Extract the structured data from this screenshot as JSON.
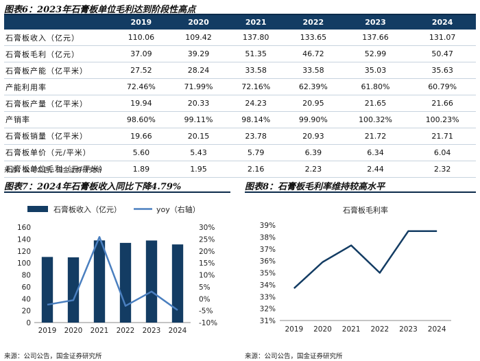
{
  "fig6": {
    "title": "图表6：2023年石膏板单位毛利达到阶段性高点",
    "headers": [
      "",
      "2019",
      "2020",
      "2021",
      "2022",
      "2023",
      "2024"
    ],
    "rows": [
      {
        "label": "石膏板收入（亿元）",
        "values": [
          "110.06",
          "109.42",
          "137.80",
          "133.65",
          "137.66",
          "131.07"
        ]
      },
      {
        "label": "石膏板毛利（亿元）",
        "values": [
          "37.09",
          "39.29",
          "51.35",
          "46.72",
          "52.99",
          "50.47"
        ]
      },
      {
        "label": "石膏板产能（亿平米）",
        "values": [
          "27.52",
          "28.24",
          "33.58",
          "33.58",
          "35.03",
          "35.63"
        ]
      },
      {
        "label": "产能利用率",
        "values": [
          "72.46%",
          "71.99%",
          "72.16%",
          "62.39%",
          "61.80%",
          "60.79%"
        ]
      },
      {
        "label": "石膏板产量（亿平米）",
        "values": [
          "19.94",
          "20.33",
          "24.23",
          "20.95",
          "21.65",
          "21.66"
        ]
      },
      {
        "label": "产销率",
        "values": [
          "98.60%",
          "99.11%",
          "98.14%",
          "99.90%",
          "100.32%",
          "100.23%"
        ]
      },
      {
        "label": "石膏板销量（亿平米）",
        "values": [
          "19.66",
          "20.15",
          "23.78",
          "20.93",
          "21.72",
          "21.71"
        ]
      },
      {
        "label": "石膏板单价（元/平米）",
        "values": [
          "5.60",
          "5.43",
          "5.79",
          "6.39",
          "6.34",
          "6.04"
        ]
      },
      {
        "label": "石膏板单位毛利（元/平米）",
        "values": [
          "1.89",
          "1.95",
          "2.16",
          "2.23",
          "2.44",
          "2.32"
        ]
      }
    ],
    "source": "来源：公司公告，国金证券研究所"
  },
  "fig7": {
    "title": "图表7：2024年石膏板收入同比下降4.79%",
    "source": "来源：公司公告，国金证券研究所"
  },
  "fig8": {
    "title": "图表8：石膏板毛利率维持较高水平",
    "source": "来源：公司公告，国金证券研究所"
  },
  "colors": {
    "navy": "#133c63",
    "line_blue": "#4a7fbf"
  },
  "chart_data": [
    {
      "type": "bar",
      "categories": [
        "2019",
        "2020",
        "2021",
        "2022",
        "2023",
        "2024"
      ],
      "series": [
        {
          "name": "石膏板收入（亿元）",
          "type": "bar",
          "axis": "left",
          "values": [
            110.06,
            109.42,
            137.8,
            133.65,
            137.66,
            131.07
          ]
        },
        {
          "name": "yoy（右轴）",
          "type": "line",
          "axis": "right",
          "values": [
            -2.5,
            -0.6,
            25.9,
            -3.0,
            3.0,
            -4.79
          ]
        }
      ],
      "ylim": [
        0,
        160
      ],
      "yticks": [
        "0",
        "20",
        "40",
        "60",
        "80",
        "100",
        "120",
        "140",
        "160"
      ],
      "y2lim": [
        -10,
        30
      ],
      "y2ticks": [
        "-10%",
        "-5%",
        "0%",
        "5%",
        "10%",
        "15%",
        "20%",
        "25%",
        "30%"
      ],
      "legend_position": "top"
    },
    {
      "type": "line",
      "title": "石膏板毛利率",
      "categories": [
        "2019",
        "2020",
        "2021",
        "2022",
        "2023",
        "2024"
      ],
      "series": [
        {
          "name": "石膏板毛利率",
          "values": [
            33.7,
            35.9,
            37.3,
            35.0,
            38.5,
            38.5
          ]
        }
      ],
      "ylim": [
        31,
        39
      ],
      "yticks": [
        "31%",
        "32%",
        "33%",
        "34%",
        "35%",
        "36%",
        "37%",
        "38%",
        "39%"
      ]
    }
  ]
}
